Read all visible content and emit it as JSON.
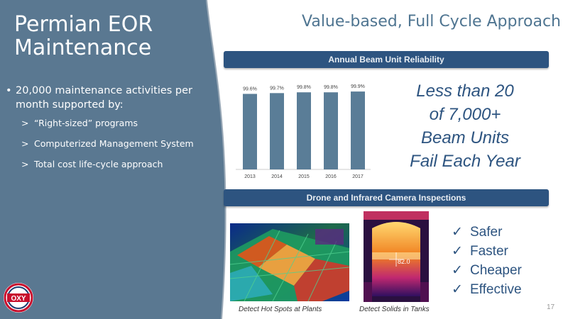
{
  "slide": {
    "title_line1": "Permian EOR",
    "title_line2": "Maintenance",
    "main_title": "Value-based, Full Cycle Approach",
    "page_number": "17"
  },
  "left_bullets": {
    "main": "20,000 maintenance activities per month supported by:",
    "sub_items": [
      "“Right-sized” programs",
      "Computerized Management System",
      "Total cost life-cycle approach"
    ]
  },
  "section1": {
    "header": "Annual Beam Unit Reliability"
  },
  "chart_data": {
    "type": "bar",
    "categories": [
      "2013",
      "2014",
      "2015",
      "2016",
      "2017"
    ],
    "values": [
      99.6,
      99.7,
      99.8,
      99.8,
      99.9
    ],
    "data_labels": [
      "99.6%",
      "99.7%",
      "99.8%",
      "99.8%",
      "99.9%"
    ],
    "title": "Annual Beam Unit Reliability",
    "xlabel": "",
    "ylabel": "",
    "bar_color": "#5a7d97",
    "grid": false,
    "legend": "none"
  },
  "callout": {
    "lines": [
      "Less than 20",
      "of 7,000+",
      "Beam Units",
      "Fail Each Year"
    ]
  },
  "section2": {
    "header": "Drone and Infrared Camera Inspections"
  },
  "photos": {
    "plant_caption": "Detect Hot Spots at Plants",
    "tank_caption": "Detect Solids in Tanks",
    "tank_reading": "82.0"
  },
  "benefits": [
    "Safer",
    "Faster",
    "Cheaper",
    "Effective"
  ],
  "colors": {
    "panel": "#5a7891",
    "accent": "#2d5480",
    "title": "#4f7591"
  },
  "logo": {
    "text": "OXY"
  }
}
